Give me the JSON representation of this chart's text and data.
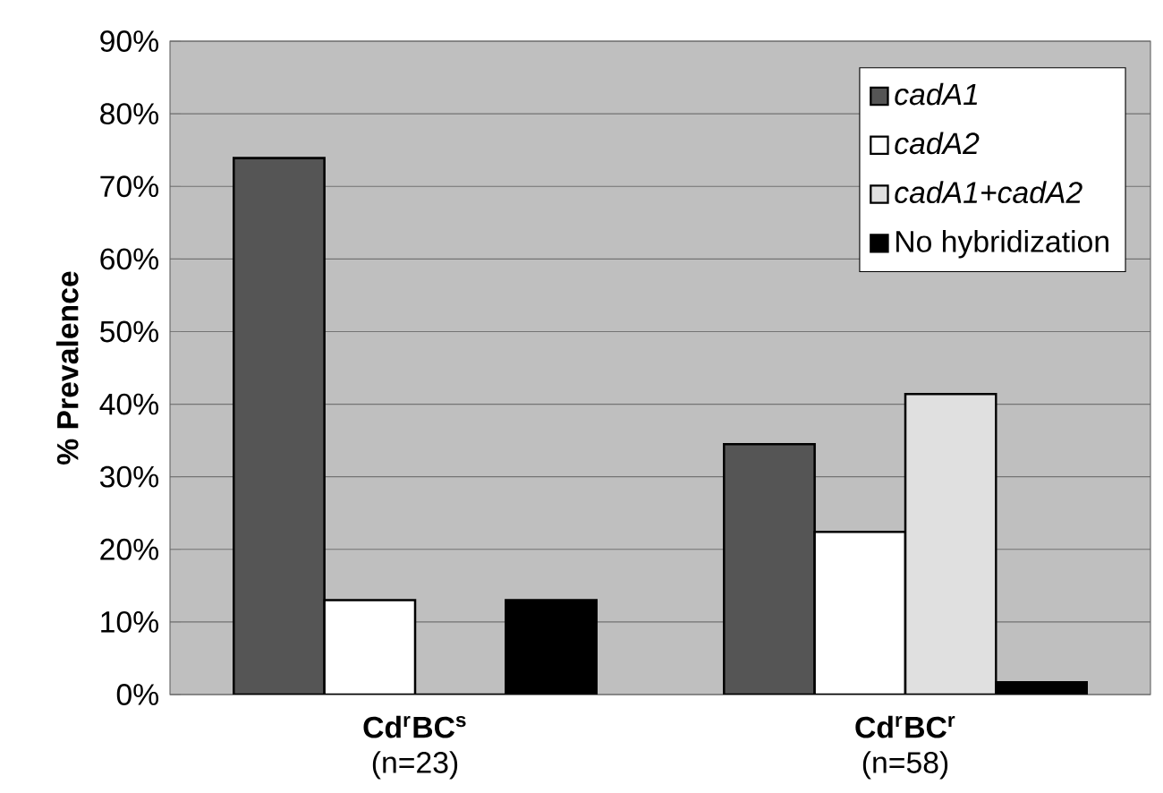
{
  "chart_data": {
    "type": "bar",
    "ylabel": "% Prevalence",
    "categories": [
      "**Cd$^{r}$BC$^{s}$** (n=23)",
      "**Cd$^{r}$BC$^{r}$** (n=58)"
    ],
    "series": [
      {
        "name": "*cadA1*",
        "color": "#555555",
        "values": [
          73.9,
          34.5
        ]
      },
      {
        "name": "*cadA2*",
        "color": "#ffffff",
        "values": [
          13.0,
          22.4
        ]
      },
      {
        "name": "*cadA1+cadA2*",
        "color": "#e0e0e0",
        "values": [
          0,
          41.4
        ]
      },
      {
        "name": "No hybridization",
        "color": "#000000",
        "values": [
          13.0,
          1.7
        ]
      }
    ],
    "ylim": [
      0,
      90
    ],
    "yticks": [
      {
        "value": 0,
        "label": "0%"
      },
      {
        "value": 10,
        "label": "10%"
      },
      {
        "value": 20,
        "label": "20%"
      },
      {
        "value": 30,
        "label": "30%"
      },
      {
        "value": 40,
        "label": "40%"
      },
      {
        "value": 50,
        "label": "50%"
      },
      {
        "value": 60,
        "label": "60%"
      },
      {
        "value": 70,
        "label": "70%"
      },
      {
        "value": 80,
        "label": "80%"
      },
      {
        "value": 90,
        "label": "90%"
      }
    ],
    "grid": "y",
    "legend": "top right"
  }
}
